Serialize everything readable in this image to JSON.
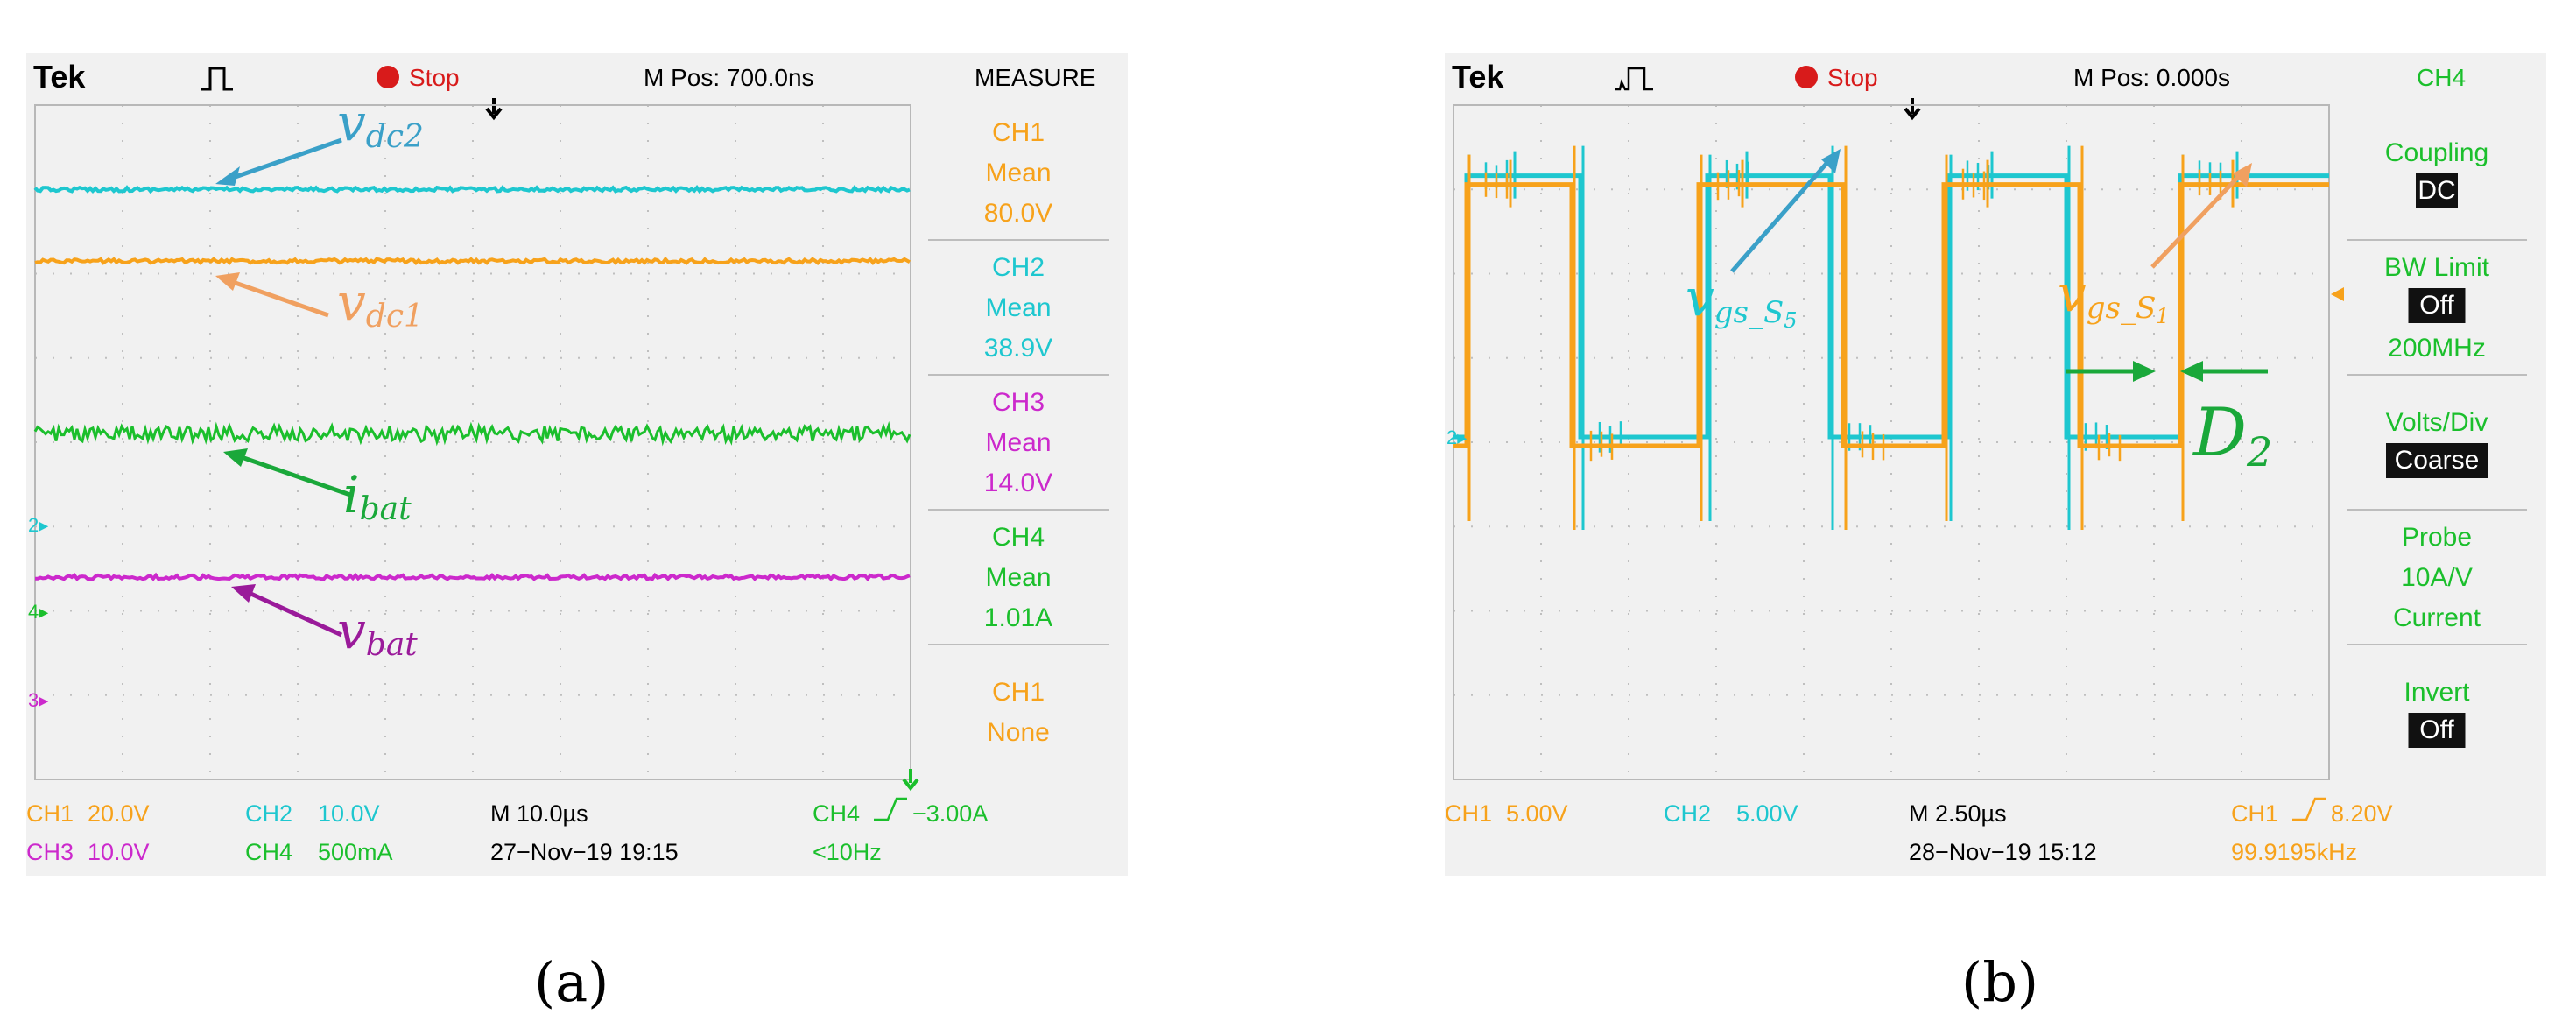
{
  "colors": {
    "ch1": "#f7a21b",
    "ch2": "#1ec7cf",
    "ch3": "#cc29cc",
    "ch4": "#1bbf2c",
    "grid": "#bfbfbf",
    "annot_ch2": "#3aa0c8",
    "annot_ch1": "#f0a060",
    "annot_ch4": "#1aa83a",
    "annot_ch3": "#9a1a9a"
  },
  "sublabels": {
    "a": "(a)",
    "b": "(b)"
  },
  "panels": [
    {
      "id": "a",
      "top": {
        "brand": "Tek",
        "status": "Stop",
        "mpos": "M Pos: 700.0ns",
        "menu_title": "MEASURE"
      },
      "menu": [
        {
          "lines": [
            "CH1",
            "Mean",
            "80.0V"
          ],
          "color": "ch1"
        },
        {
          "lines": [
            "CH2",
            "Mean",
            "38.9V"
          ],
          "color": "ch2"
        },
        {
          "lines": [
            "CH3",
            "Mean",
            "14.0V"
          ],
          "color": "ch3"
        },
        {
          "lines": [
            "CH4",
            "Mean",
            "1.01A"
          ],
          "color": "ch4"
        },
        {
          "lines": [
            "CH1",
            "None"
          ],
          "color": "ch1"
        }
      ],
      "bottom": {
        "r1": [
          {
            "text": "CH1",
            "color": "ch1"
          },
          {
            "text": "20.0V",
            "color": "ch1"
          },
          {
            "text": "CH2",
            "color": "ch2"
          },
          {
            "text": "10.0V",
            "color": "ch2"
          },
          {
            "text": "M 10.0µs",
            "color": "black"
          },
          {
            "text": "CH4",
            "color": "ch4"
          },
          {
            "text": "−3.00A",
            "color": "ch4"
          }
        ],
        "r2": [
          {
            "text": "CH3",
            "color": "ch3"
          },
          {
            "text": "10.0V",
            "color": "ch3"
          },
          {
            "text": "CH4",
            "color": "ch4"
          },
          {
            "text": "500mA",
            "color": "ch4"
          },
          {
            "text": "27−Nov−19 19:15",
            "color": "black"
          },
          {
            "text": "<10Hz",
            "color": "ch4"
          }
        ]
      },
      "markers": [
        "2",
        "4",
        "3"
      ],
      "annotations": [
        {
          "main": "v",
          "sub": "dc2",
          "color": "annot_ch2"
        },
        {
          "main": "v",
          "sub": "dc1",
          "color": "annot_ch1"
        },
        {
          "main": "i",
          "sub": "bat",
          "color": "annot_ch4"
        },
        {
          "main": "v",
          "sub": "bat",
          "color": "annot_ch3"
        }
      ]
    },
    {
      "id": "b",
      "top": {
        "brand": "Tek",
        "status": "Stop",
        "mpos": "M Pos: 0.000s",
        "menu_title": "CH4"
      },
      "menu": [
        {
          "lines": [
            "Coupling"
          ],
          "box": "DC"
        },
        {
          "lines": [
            "BW Limit"
          ],
          "box": "Off",
          "after": "200MHz"
        },
        {
          "lines": [
            "Volts/Div"
          ],
          "box": "Coarse"
        },
        {
          "lines": [
            "Probe",
            "10A/V",
            "Current"
          ]
        },
        {
          "lines": [
            "Invert"
          ],
          "box": "Off"
        }
      ],
      "bottom": {
        "r1": [
          {
            "text": "CH1",
            "color": "ch1"
          },
          {
            "text": "5.00V",
            "color": "ch1"
          },
          {
            "text": "CH2",
            "color": "ch2"
          },
          {
            "text": "5.00V",
            "color": "ch2"
          },
          {
            "text": "M 2.50µs",
            "color": "black"
          },
          {
            "text": "CH1",
            "color": "ch1"
          },
          {
            "text": "8.20V",
            "color": "ch1"
          }
        ],
        "r2": [
          {
            "text": "28−Nov−19 15:12",
            "color": "black"
          },
          {
            "text": "99.9195kHz",
            "color": "ch1"
          }
        ]
      },
      "markers": [
        "2"
      ],
      "annotations": [
        {
          "main": "v",
          "sub": "gs_S",
          "subsub": "5",
          "color": "ch2"
        },
        {
          "main": "v",
          "sub": "gs_S",
          "subsub": "1",
          "color": "ch1"
        },
        {
          "main": "D",
          "sub": "2",
          "color": "annot_ch4"
        }
      ]
    }
  ],
  "chart_data": [
    {
      "type": "line",
      "title": "",
      "grid": true,
      "divisions": {
        "x": 10,
        "y": 8
      },
      "series": [
        {
          "name": "CH2",
          "level_div": 7.0,
          "noise": "low"
        },
        {
          "name": "CH1",
          "level_div": 6.15,
          "noise": "low"
        },
        {
          "name": "CH4",
          "level_div": 4.1,
          "noise": "high"
        },
        {
          "name": "CH3",
          "level_div": 2.4,
          "noise": "low"
        }
      ]
    },
    {
      "type": "line",
      "title": "",
      "grid": true,
      "divisions": {
        "x": 10,
        "y": 8
      },
      "high_div": 7.1,
      "low_div": 4.0,
      "period_div": 8.0,
      "series": [
        {
          "name": "CH1",
          "transitions_div": [
            0.15,
            1.35,
            2.8,
            4.45,
            5.6,
            7.15,
            8.3
          ]
        },
        {
          "name": "CH2",
          "transitions_div": [
            0.15,
            1.45,
            2.9,
            4.3,
            5.65,
            7.0,
            8.3
          ]
        }
      ]
    }
  ]
}
